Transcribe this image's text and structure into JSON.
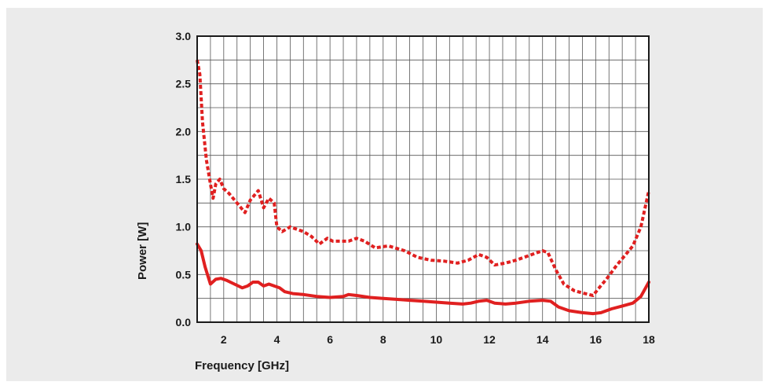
{
  "chart_data": {
    "type": "line",
    "title": "",
    "xlabel": "Frequency [GHz]",
    "ylabel": "Power [W]",
    "xlim": [
      1,
      18
    ],
    "ylim": [
      0,
      3.0
    ],
    "xticks": [
      2,
      4,
      6,
      8,
      10,
      12,
      14,
      16,
      18
    ],
    "xtick_labels": [
      "2",
      "4",
      "6",
      "8",
      "10",
      "12",
      "14",
      "16",
      "18"
    ],
    "yticks": [
      0,
      0.5,
      1.0,
      1.5,
      2.0,
      2.5,
      3.0
    ],
    "ytick_labels": [
      "0.0",
      "0.5",
      "1.0",
      "1.5",
      "2.0",
      "2.5",
      "3.0"
    ],
    "grid": true,
    "legend": "none",
    "series": [
      {
        "style": "dotted",
        "color": "#e02020",
        "x": [
          1.0,
          1.1,
          1.2,
          1.35,
          1.5,
          1.6,
          1.7,
          1.85,
          2.0,
          2.2,
          2.5,
          2.8,
          3.0,
          3.3,
          3.5,
          3.7,
          3.9,
          4.0,
          4.2,
          4.5,
          5.0,
          5.3,
          5.6,
          5.9,
          6.1,
          6.3,
          6.7,
          7.0,
          7.3,
          7.7,
          8.2,
          8.8,
          9.3,
          9.8,
          10.3,
          10.8,
          11.2,
          11.6,
          11.9,
          12.2,
          12.6,
          13.0,
          13.5,
          14.0,
          14.2,
          14.5,
          14.8,
          15.2,
          15.6,
          15.9,
          16.1,
          16.4,
          16.8,
          17.1,
          17.4,
          17.7,
          18.0
        ],
        "y": [
          2.75,
          2.6,
          2.1,
          1.7,
          1.45,
          1.3,
          1.45,
          1.5,
          1.4,
          1.35,
          1.25,
          1.15,
          1.28,
          1.38,
          1.2,
          1.3,
          1.25,
          1.0,
          0.95,
          1.0,
          0.95,
          0.9,
          0.82,
          0.88,
          0.85,
          0.85,
          0.85,
          0.88,
          0.85,
          0.78,
          0.8,
          0.75,
          0.68,
          0.65,
          0.64,
          0.62,
          0.65,
          0.71,
          0.68,
          0.6,
          0.62,
          0.65,
          0.7,
          0.75,
          0.73,
          0.55,
          0.4,
          0.33,
          0.3,
          0.28,
          0.35,
          0.45,
          0.6,
          0.7,
          0.8,
          1.0,
          1.38
        ]
      },
      {
        "style": "solid",
        "color": "#e02020",
        "x": [
          1.0,
          1.15,
          1.3,
          1.5,
          1.7,
          1.9,
          2.1,
          2.4,
          2.7,
          2.9,
          3.1,
          3.3,
          3.5,
          3.7,
          3.9,
          4.1,
          4.3,
          4.6,
          5.0,
          5.5,
          6.0,
          6.5,
          6.7,
          7.0,
          7.5,
          8.0,
          8.5,
          9.0,
          9.5,
          10.0,
          10.5,
          11.0,
          11.3,
          11.6,
          11.9,
          12.2,
          12.6,
          13.0,
          13.5,
          14.0,
          14.3,
          14.6,
          15.0,
          15.5,
          15.9,
          16.2,
          16.6,
          17.0,
          17.4,
          17.7,
          18.0
        ],
        "y": [
          0.82,
          0.75,
          0.58,
          0.4,
          0.45,
          0.46,
          0.44,
          0.4,
          0.36,
          0.38,
          0.42,
          0.42,
          0.38,
          0.4,
          0.38,
          0.36,
          0.32,
          0.3,
          0.29,
          0.27,
          0.26,
          0.27,
          0.29,
          0.28,
          0.26,
          0.25,
          0.24,
          0.23,
          0.22,
          0.21,
          0.2,
          0.19,
          0.2,
          0.22,
          0.23,
          0.2,
          0.19,
          0.2,
          0.22,
          0.23,
          0.22,
          0.16,
          0.12,
          0.1,
          0.09,
          0.1,
          0.14,
          0.17,
          0.2,
          0.27,
          0.42
        ]
      }
    ]
  }
}
